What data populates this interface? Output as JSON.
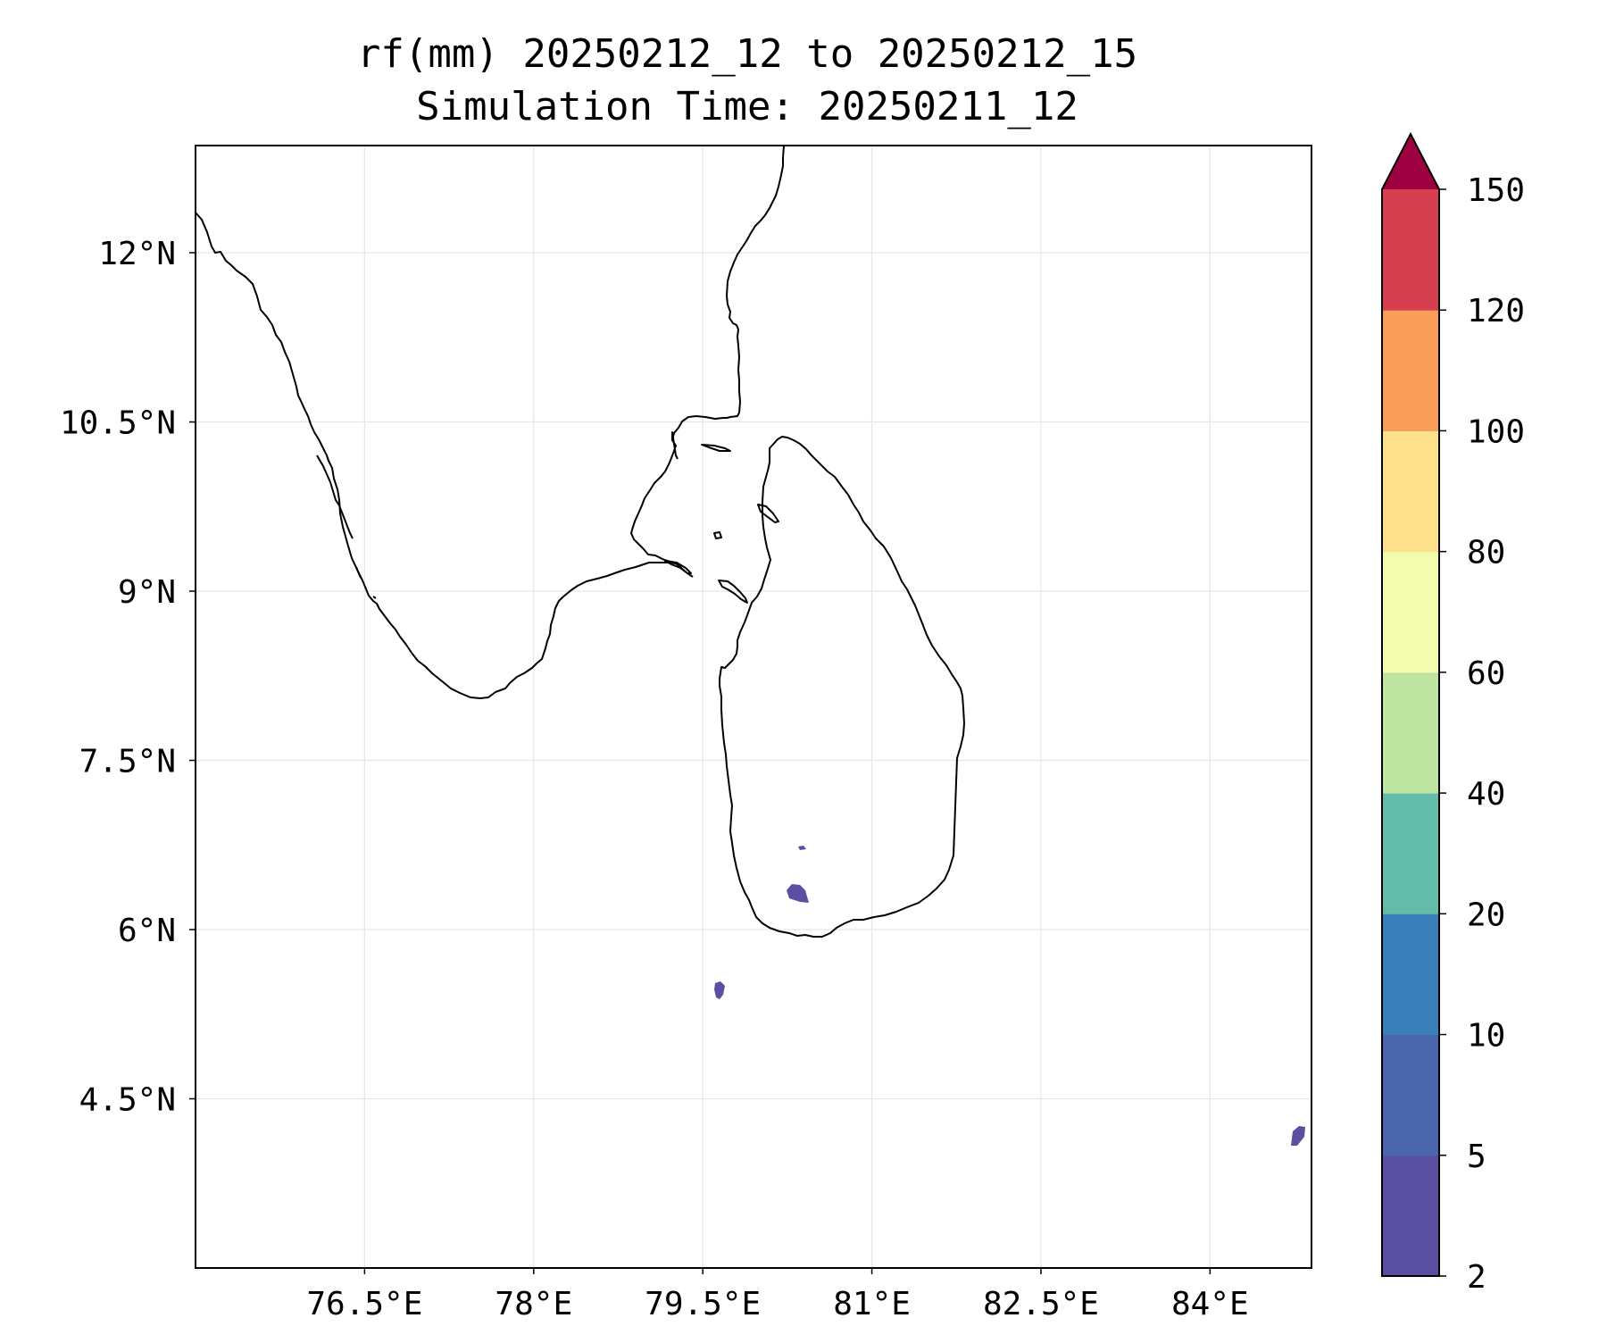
{
  "title": {
    "line1": "rf(mm) 20250212_12 to 20250212_15",
    "line2": "Simulation Time: 20250211_12"
  },
  "map": {
    "lon_range": [
      75.0,
      84.9
    ],
    "lat_range": [
      3.0,
      12.95
    ],
    "lon_ticks": [
      {
        "value": 76.5,
        "label": "76.5°E"
      },
      {
        "value": 78.0,
        "label": "78°E"
      },
      {
        "value": 79.5,
        "label": "79.5°E"
      },
      {
        "value": 81.0,
        "label": "81°E"
      },
      {
        "value": 82.5,
        "label": "82.5°E"
      },
      {
        "value": 84.0,
        "label": "84°E"
      }
    ],
    "lat_ticks": [
      {
        "value": 12.0,
        "label": "12°N"
      },
      {
        "value": 10.5,
        "label": "10.5°N"
      },
      {
        "value": 9.0,
        "label": "9°N"
      },
      {
        "value": 7.5,
        "label": "7.5°N"
      },
      {
        "value": 6.0,
        "label": "6°N"
      },
      {
        "value": 4.5,
        "label": "4.5°N"
      }
    ],
    "grid": true
  },
  "colorbar": {
    "levels": [
      "2",
      "5",
      "10",
      "20",
      "40",
      "60",
      "80",
      "100",
      "120",
      "150"
    ],
    "colors": [
      "#5a4fa1",
      "#4b65ad",
      "#3a7fb9",
      "#63bca8",
      "#bde4a0",
      "#f3fbae",
      "#fce08a",
      "#f99d5a",
      "#d63f4f"
    ],
    "extend_color": "#9e0142",
    "extend": "max"
  },
  "rain_colors": {
    "2_5": "#5a4fa1"
  }
}
